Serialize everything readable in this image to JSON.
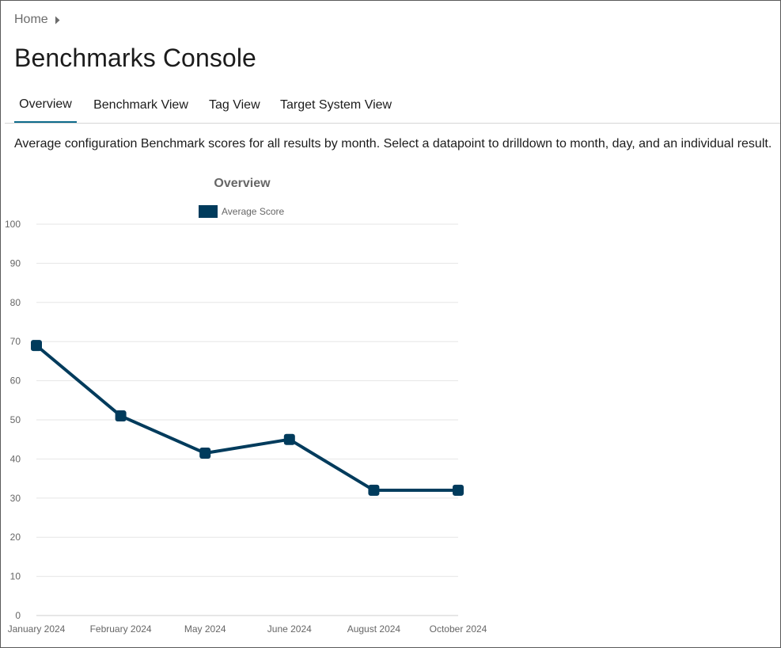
{
  "breadcrumb": {
    "home_label": "Home"
  },
  "page": {
    "title": "Benchmarks Console"
  },
  "tabs": [
    {
      "label": "Overview",
      "active": true
    },
    {
      "label": "Benchmark View",
      "active": false
    },
    {
      "label": "Tag View",
      "active": false
    },
    {
      "label": "Target System View",
      "active": false
    }
  ],
  "description": "Average configuration Benchmark scores for all results by month. Select a datapoint to drilldown to month, day, and an individual result.",
  "icons": {
    "breadcrumb_separator": "caret-right-icon"
  },
  "colors": {
    "series": "#003b5c",
    "active_tab": "#0e6b8c"
  },
  "chart_data": {
    "type": "line",
    "title": "Overview",
    "categories": [
      "January 2024",
      "February 2024",
      "May 2024",
      "June 2024",
      "August 2024",
      "October 2024"
    ],
    "series": [
      {
        "name": "Average Score",
        "values": [
          69,
          51,
          41.5,
          45,
          32,
          32
        ]
      }
    ],
    "xlabel": "",
    "ylabel": "",
    "ylim": [
      0,
      100
    ],
    "yticks": [
      0,
      10,
      20,
      30,
      40,
      50,
      60,
      70,
      80,
      90,
      100
    ],
    "grid": true,
    "legend": "top-center"
  }
}
